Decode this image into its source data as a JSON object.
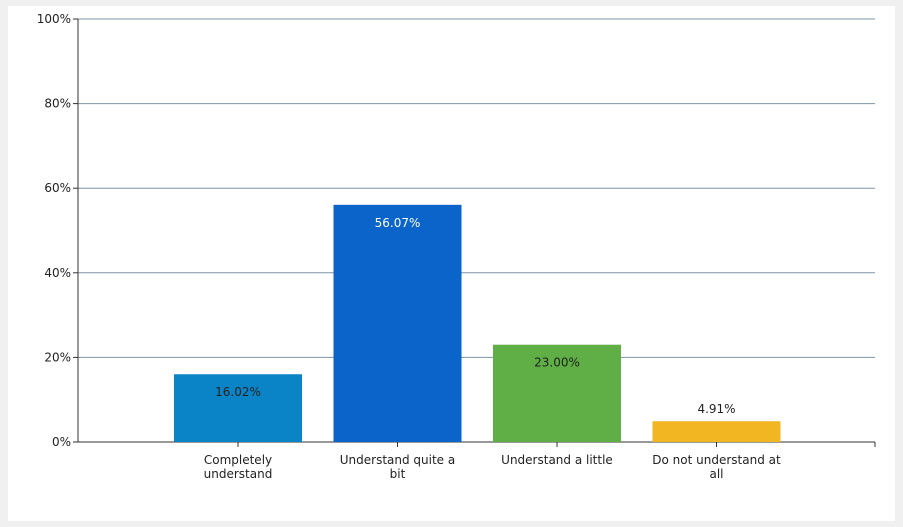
{
  "chart_data": {
    "type": "bar",
    "categories": [
      [
        "Completely",
        "understand"
      ],
      [
        "Understand quite a",
        "bit"
      ],
      [
        "Understand a little"
      ],
      [
        "Do not understand at",
        "all"
      ]
    ],
    "values": [
      16.02,
      56.07,
      23.0,
      4.91
    ],
    "data_labels": [
      "16.02%",
      "56.07%",
      "23.00%",
      "4.91%"
    ],
    "data_label_colors": [
      "#222222",
      "#ffffff",
      "#222222",
      "#222222"
    ],
    "bar_colors": [
      "#0a84c6",
      "#0a64c9",
      "#5fae46",
      "#f2b623"
    ],
    "ylim": [
      0,
      100
    ],
    "yticks": [
      0,
      20,
      40,
      60,
      80,
      100
    ],
    "ytick_labels": [
      "0%",
      "20%",
      "40%",
      "60%",
      "80%",
      "100%"
    ],
    "grid": true,
    "grid_color": "#7f93a6",
    "background_color": "#f0f0f0",
    "plot_background_color": "#ffffff",
    "title": "",
    "xlabel": "",
    "ylabel": ""
  }
}
